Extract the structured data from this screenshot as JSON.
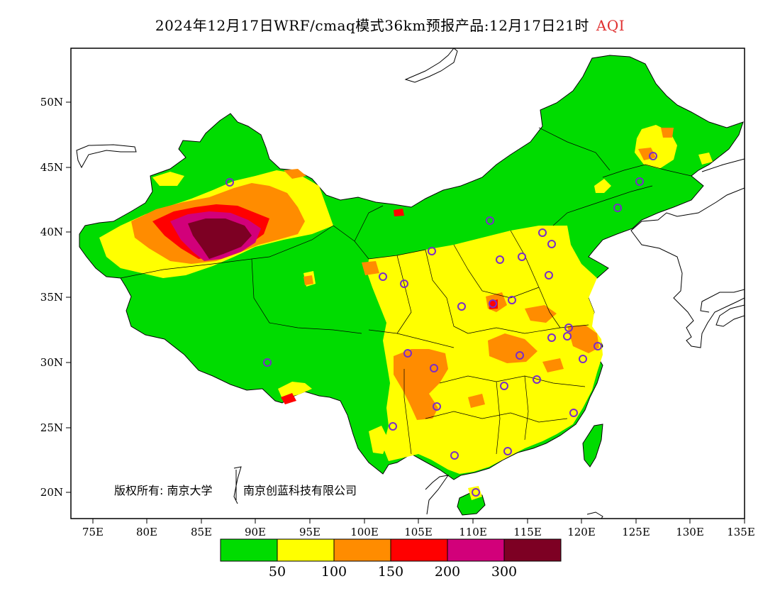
{
  "title": {
    "main": "2024年12月17日WRF/cmaq模式36km预报产品:12月17日21时",
    "metric": "AQI"
  },
  "axes": {
    "lat_ticks": [
      "20N",
      "25N",
      "30N",
      "35N",
      "40N",
      "45N",
      "50N"
    ],
    "lon_ticks": [
      "75E",
      "80E",
      "85E",
      "90E",
      "95E",
      "100E",
      "105E",
      "110E",
      "115E",
      "120E",
      "125E",
      "130E",
      "135E"
    ]
  },
  "copyright": {
    "prefix": "版权所有: 南京大学",
    "company": "南京创蓝科技有限公司"
  },
  "legend": {
    "colors": [
      "#00dc00",
      "#ffff00",
      "#ff8c00",
      "#ff0000",
      "#d2007a",
      "#7d0023"
    ],
    "labels": [
      "50",
      "100",
      "150",
      "200",
      "300"
    ]
  },
  "colors": {
    "good": "#00dc00",
    "moderate": "#ffff00",
    "light": "#ff8c00",
    "medium": "#ff0000",
    "heavy": "#d2007a",
    "severe": "#7d0023",
    "station_marker": "#7a2cc8"
  }
}
